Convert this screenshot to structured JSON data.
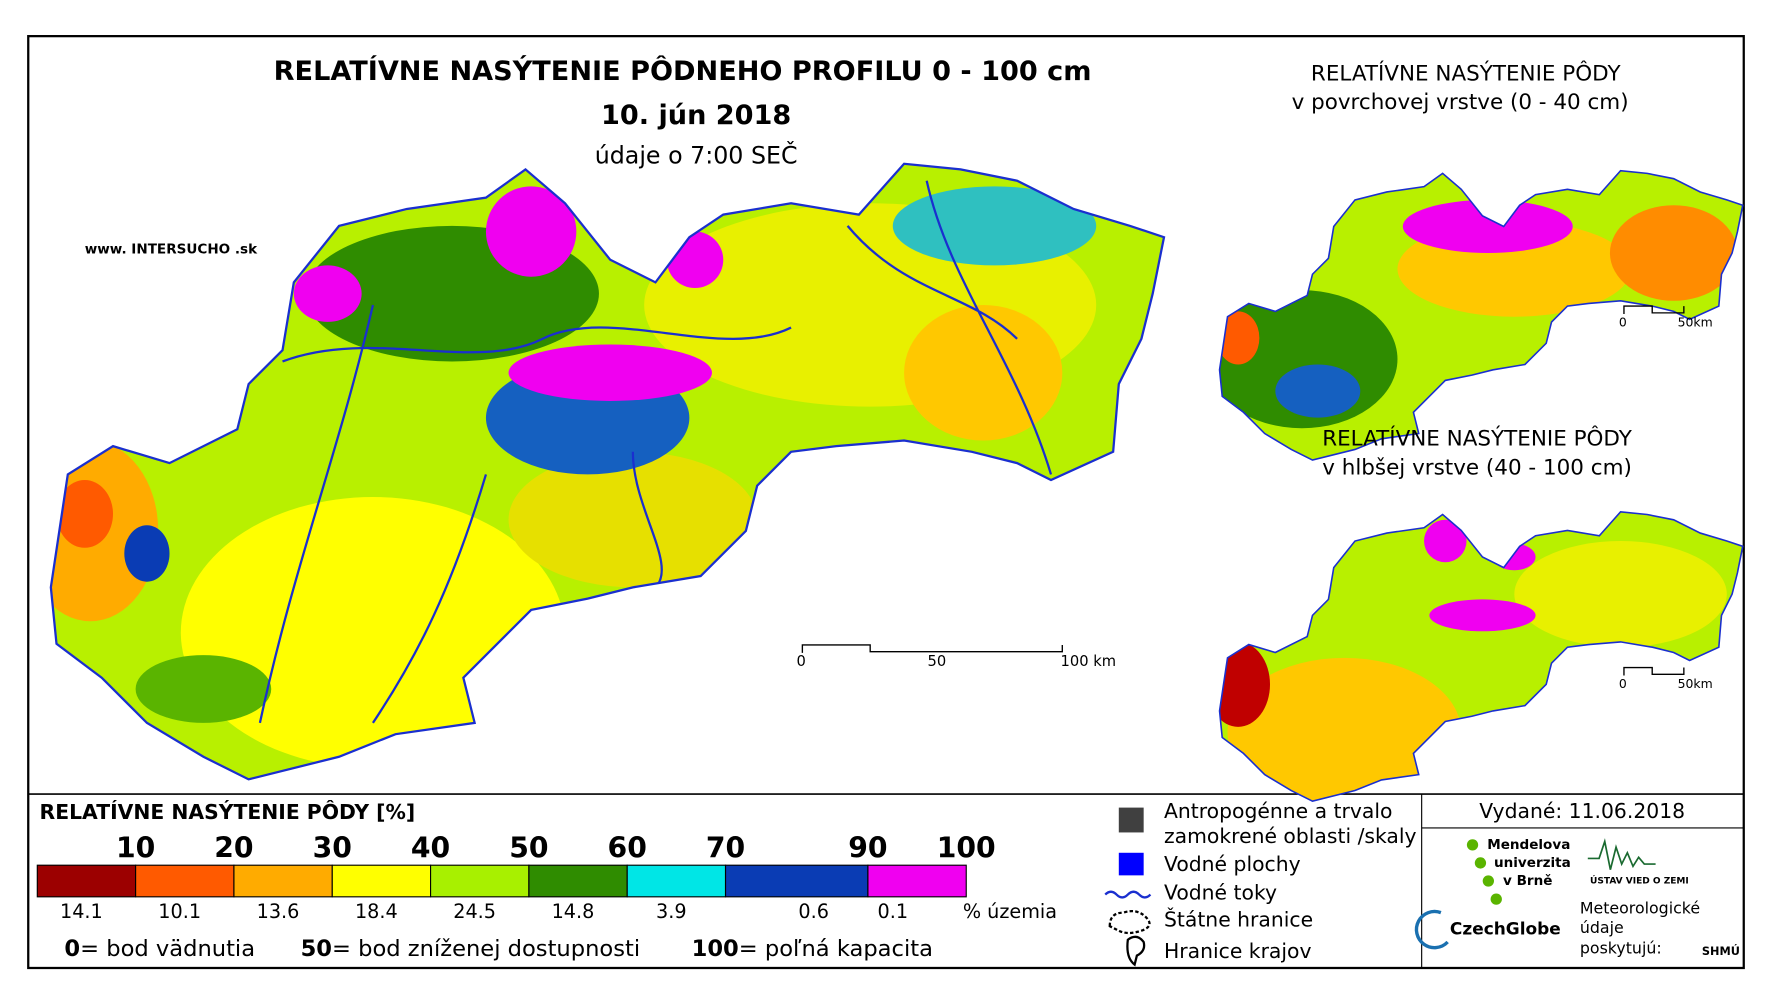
{
  "header": {
    "title": "RELATÍVNE NASÝTENIE PÔDNEHO PROFILU 0 - 100 cm",
    "date": "10. jún 2018",
    "time": "údaje o 7:00 SEČ",
    "website": "www. INTERSUCHO .sk"
  },
  "main_map": {
    "scale_labels": [
      "0",
      "50",
      "100 km"
    ]
  },
  "inset_top": {
    "title": [
      "RELATÍVNE NASÝTENIE PÔDY",
      "v povrchovej vrstve (0 - 40 cm)"
    ],
    "scale_labels": [
      "0",
      "50km"
    ]
  },
  "inset_bottom": {
    "title": [
      "RELATÍVNE NASÝTENIE PÔDY",
      "v hlbšej vrstve (40 - 100 cm)"
    ],
    "scale_labels": [
      "0",
      "50km"
    ]
  },
  "legend": {
    "title": "RELATÍVNE NASÝTENIE PÔDY [%]",
    "breaks": [
      10,
      20,
      30,
      40,
      50,
      60,
      70,
      90,
      100
    ],
    "classes": [
      {
        "color": "#9c0000",
        "share": 14.1
      },
      {
        "color": "#ff5a00",
        "share": 10.1
      },
      {
        "color": "#ffab00",
        "share": 13.6
      },
      {
        "color": "#ffff00",
        "share": 18.4
      },
      {
        "color": "#a8f000",
        "share": 24.5
      },
      {
        "color": "#2f8c00",
        "share": 14.8
      },
      {
        "color": "#00e6e6",
        "share": 3.9
      },
      {
        "color": "#0a3cb4",
        "share": 0.6
      },
      {
        "color": "#f000f0",
        "share": 0.1
      }
    ],
    "share_unit": "% územia",
    "notes": [
      {
        "key": "0",
        "text": "= bod vädnutia"
      },
      {
        "key": "50",
        "text": "= bod zníženej dostupnosti"
      },
      {
        "key": "100",
        "text": "= poľná kapacita"
      }
    ]
  },
  "map_legend": [
    [
      "Antropogénne a trvalo",
      "zamokrené oblasti /skaly"
    ],
    [
      "Vodné plochy"
    ],
    [
      "Vodné toky"
    ],
    [
      "Štátne hranice"
    ],
    [
      "Hranice krajov"
    ]
  ],
  "issued": "Vydané: 11.06.2018",
  "logos": {
    "mendel": [
      "Mendelova",
      "univerzita",
      "v Brně"
    ],
    "uvz": "ÚSTAV VIED O ZEMI",
    "czechglobe": "CzechGlobe",
    "meteo": [
      "Meteorologické",
      "údaje",
      "poskytujú:"
    ],
    "shmu": "SHMÚ"
  }
}
